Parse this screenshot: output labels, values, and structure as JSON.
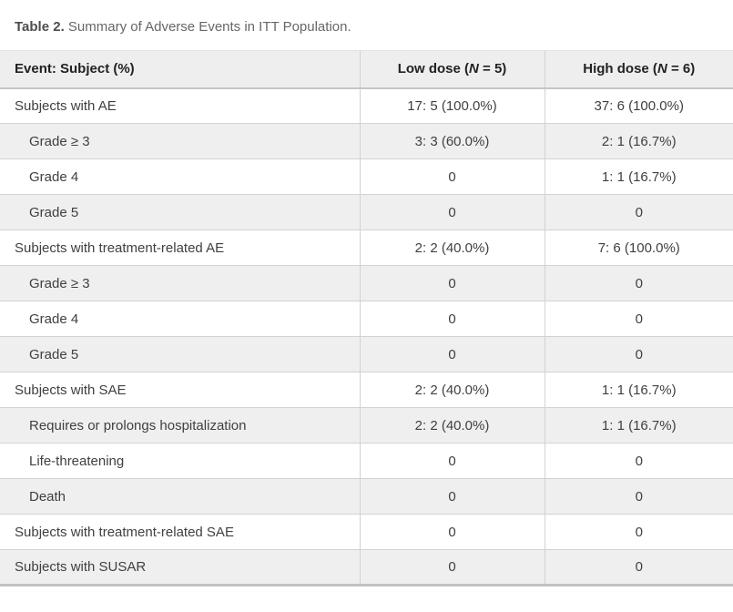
{
  "caption": {
    "label": "Table 2.",
    "text": "Summary of Adverse Events in ITT Population."
  },
  "table": {
    "header": {
      "event": "Event: Subject (%)",
      "low": {
        "pre": "Low dose (",
        "n": "N",
        "post": " = 5)"
      },
      "high": {
        "pre": "High dose (",
        "n": "N",
        "post": " = 6)"
      }
    },
    "rows": [
      {
        "label": "Subjects with AE",
        "indent": 0,
        "low": "17: 5 (100.0%)",
        "high": "37: 6 (100.0%)"
      },
      {
        "label": "Grade ≥ 3",
        "indent": 1,
        "low": "3: 3 (60.0%)",
        "high": "2: 1 (16.7%)"
      },
      {
        "label": "Grade 4",
        "indent": 1,
        "low": "0",
        "high": "1: 1 (16.7%)"
      },
      {
        "label": "Grade 5",
        "indent": 1,
        "low": "0",
        "high": "0"
      },
      {
        "label": "Subjects with treatment-related AE",
        "indent": 0,
        "low": "2: 2 (40.0%)",
        "high": "7: 6 (100.0%)"
      },
      {
        "label": "Grade ≥ 3",
        "indent": 1,
        "low": "0",
        "high": "0"
      },
      {
        "label": "Grade 4",
        "indent": 1,
        "low": "0",
        "high": "0"
      },
      {
        "label": "Grade 5",
        "indent": 1,
        "low": "0",
        "high": "0"
      },
      {
        "label": "Subjects with SAE",
        "indent": 0,
        "low": "2: 2 (40.0%)",
        "high": "1: 1 (16.7%)"
      },
      {
        "label": "Requires or prolongs hospitalization",
        "indent": 1,
        "low": "2: 2 (40.0%)",
        "high": "1: 1 (16.7%)"
      },
      {
        "label": "Life-threatening",
        "indent": 1,
        "low": "0",
        "high": "0"
      },
      {
        "label": "Death",
        "indent": 1,
        "low": "0",
        "high": "0"
      },
      {
        "label": "Subjects with treatment-related SAE",
        "indent": 0,
        "low": "0",
        "high": "0"
      },
      {
        "label": "Subjects with SUSAR",
        "indent": 0,
        "low": "0",
        "high": "0"
      }
    ],
    "colors": {
      "header_bg": "#eeeeee",
      "stripe_bg": "#efefef",
      "cell_border": "#d2d2d2",
      "header_rule": "#c6c6c6",
      "bottom_rule": "#c2c2c2",
      "header_text": "#222222",
      "body_text": "#404040",
      "caption_text": "#666666"
    }
  }
}
